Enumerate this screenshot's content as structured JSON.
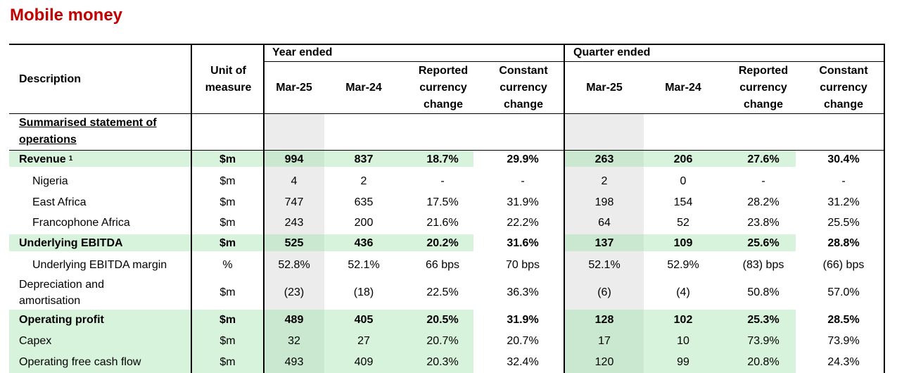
{
  "title": "Mobile money",
  "header": {
    "description": "Description",
    "unit_of_measure": "Unit of measure",
    "year_ended": "Year ended",
    "quarter_ended": "Quarter ended",
    "mar25": "Mar-25",
    "mar24": "Mar-24",
    "reported_currency_change": "Reported currency change",
    "constant_currency_change": "Constant currency change"
  },
  "section_label": "Summarised statement of operations",
  "rows": [
    {
      "label": "Revenue",
      "sup": "1",
      "unit": "$m",
      "y25": "994",
      "y24": "837",
      "yr": "18.7%",
      "yc": "29.9%",
      "q25": "263",
      "q24": "206",
      "qr": "27.6%",
      "qc": "30.4%"
    },
    {
      "label": "Nigeria",
      "unit": "$m",
      "y25": "4",
      "y24": "2",
      "yr": "-",
      "yc": "-",
      "q25": "2",
      "q24": "0",
      "qr": "-",
      "qc": "-"
    },
    {
      "label": "East Africa",
      "unit": "$m",
      "y25": "747",
      "y24": "635",
      "yr": "17.5%",
      "yc": "31.9%",
      "q25": "198",
      "q24": "154",
      "qr": "28.2%",
      "qc": "31.2%"
    },
    {
      "label": "Francophone Africa",
      "unit": "$m",
      "y25": "243",
      "y24": "200",
      "yr": "21.6%",
      "yc": "22.2%",
      "q25": "64",
      "q24": "52",
      "qr": "23.8%",
      "qc": "25.5%"
    },
    {
      "label": "Underlying EBITDA",
      "unit": "$m",
      "y25": "525",
      "y24": "436",
      "yr": "20.2%",
      "yc": "31.6%",
      "q25": "137",
      "q24": "109",
      "qr": "25.6%",
      "qc": "28.8%"
    },
    {
      "label": "Underlying EBITDA margin",
      "unit": "%",
      "y25": "52.8%",
      "y24": "52.1%",
      "yr": "66 bps",
      "yc": "70 bps",
      "q25": "52.1%",
      "q24": "52.9%",
      "qr": "(83) bps",
      "qc": "(66) bps"
    },
    {
      "label": "Depreciation and amortisation",
      "unit": "$m",
      "y25": "(23)",
      "y24": "(18)",
      "yr": "22.5%",
      "yc": "36.3%",
      "q25": "(6)",
      "q24": "(4)",
      "qr": "50.8%",
      "qc": "57.0%"
    },
    {
      "label": "Operating profit",
      "unit": "$m",
      "y25": "489",
      "y24": "405",
      "yr": "20.5%",
      "yc": "31.9%",
      "q25": "128",
      "q24": "102",
      "qr": "25.3%",
      "qc": "28.5%"
    },
    {
      "label": "Capex",
      "unit": "$m",
      "y25": "32",
      "y24": "27",
      "yr": "20.7%",
      "yc": "20.7%",
      "q25": "17",
      "q24": "10",
      "qr": "73.9%",
      "qc": "73.9%"
    },
    {
      "label": "Operating free cash flow",
      "unit": "$m",
      "y25": "493",
      "y24": "409",
      "yr": "20.3%",
      "yc": "32.4%",
      "q25": "120",
      "q24": "99",
      "qr": "20.8%",
      "qc": "24.3%"
    }
  ],
  "colors": {
    "title": "#c00000",
    "highlight_green": "#d8f3dc",
    "highlight_green_dark": "#c9e8cf",
    "shade_grey": "#ececec"
  }
}
